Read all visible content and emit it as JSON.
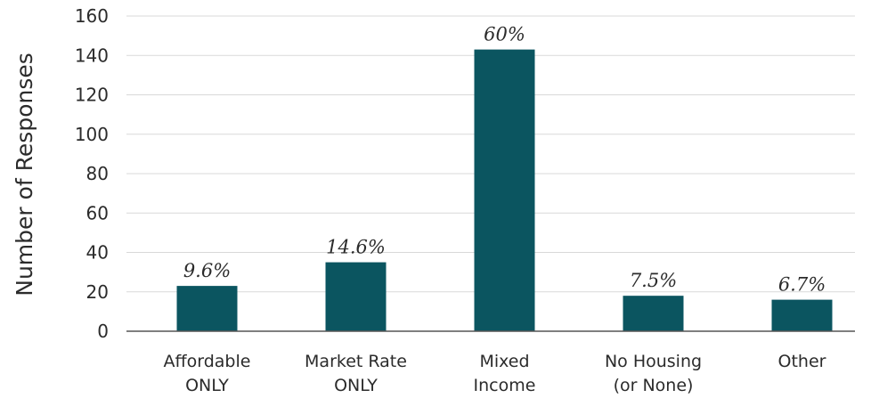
{
  "chart_data": {
    "type": "bar",
    "title": "",
    "xlabel": "",
    "ylabel": "Number of Responses",
    "ylim": [
      0,
      160
    ],
    "yticks": [
      0,
      20,
      40,
      60,
      80,
      100,
      120,
      140,
      160
    ],
    "grid": true,
    "categories": [
      [
        "Affordable",
        "ONLY"
      ],
      [
        "Market Rate",
        "ONLY"
      ],
      [
        "Mixed",
        "Income"
      ],
      [
        "No Housing",
        "(or None)"
      ],
      [
        "Other"
      ]
    ],
    "values": [
      23,
      35,
      143,
      18,
      16
    ],
    "data_labels": [
      "9.6%",
      "14.6%",
      "60%",
      "7.5%",
      "6.7%"
    ],
    "bar_color": "#0b5560",
    "grid_color": "#d9d9d9",
    "axis_color": "#555555"
  }
}
